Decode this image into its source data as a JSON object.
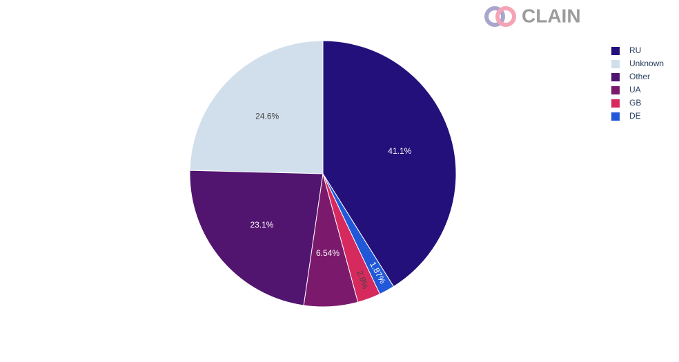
{
  "brand": "CLAIN",
  "chart_data": {
    "type": "pie",
    "categories": [
      "RU",
      "Unknown",
      "Other",
      "UA",
      "GB",
      "DE"
    ],
    "values": [
      41.1,
      24.6,
      23.1,
      6.54,
      2.8,
      1.87
    ],
    "value_labels": [
      "41.1%",
      "24.6%",
      "23.1%",
      "6.54%",
      "2.8%",
      "1.87%"
    ],
    "colors": [
      "#23107a",
      "#d1dfec",
      "#51146f",
      "#7b1a6d",
      "#d62a5e",
      "#2158d8"
    ],
    "legend": "top-right"
  }
}
